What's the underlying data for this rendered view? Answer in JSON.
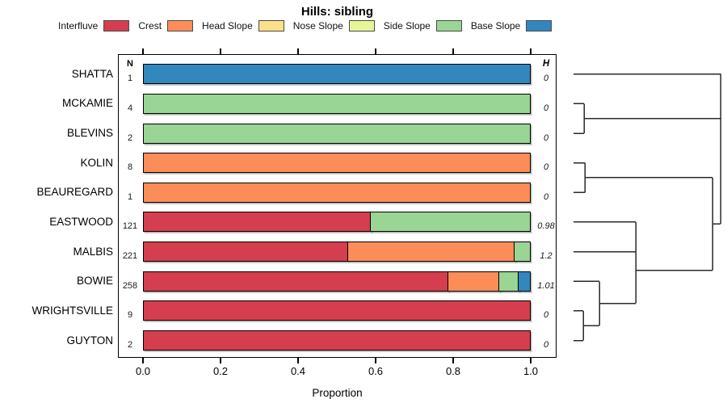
{
  "chart_data": {
    "type": "bar",
    "orientation": "horizontal-stacked",
    "title": "Hills: sibling",
    "xlabel": "Proportion",
    "xlim": [
      0.0,
      1.0
    ],
    "xticks": [
      "0.0",
      "0.2",
      "0.4",
      "0.6",
      "0.8",
      "1.0"
    ],
    "grid": false,
    "legend_position": "top",
    "legend": [
      "Interfluve",
      "Crest",
      "Head Slope",
      "Nose Slope",
      "Side Slope",
      "Base Slope"
    ],
    "colors": {
      "Interfluve": "#D53E4F",
      "Crest": "#FC8D59",
      "Head Slope": "#FEE08B",
      "Nose Slope": "#E6F598",
      "Side Slope": "#99D594",
      "Base Slope": "#3288BD"
    },
    "columns": {
      "n_header": "N",
      "h_header": "H"
    },
    "categories": [
      "SHATTA",
      "MCKAMIE",
      "BLEVINS",
      "KOLIN",
      "BEAUREGARD",
      "EASTWOOD",
      "MALBIS",
      "BOWIE",
      "WRIGHTSVILLE",
      "GUYTON"
    ],
    "n_values": [
      "1",
      "4",
      "2",
      "8",
      "1",
      "121",
      "221",
      "258",
      "9",
      "2"
    ],
    "h_values": [
      "0",
      "0",
      "0",
      "0",
      "0",
      "0.98",
      "1.2",
      "1.01",
      "0",
      "0"
    ],
    "series": [
      {
        "name": "Interfluve",
        "values": [
          0,
          0,
          0,
          0,
          0,
          0.59,
          0.53,
          0.79,
          1,
          1
        ]
      },
      {
        "name": "Crest",
        "values": [
          0,
          0,
          0,
          1,
          1,
          0,
          0.43,
          0.13,
          0,
          0
        ]
      },
      {
        "name": "Head Slope",
        "values": [
          0,
          0,
          0,
          0,
          0,
          0,
          0,
          0,
          0,
          0
        ]
      },
      {
        "name": "Nose Slope",
        "values": [
          0,
          0,
          0,
          0,
          0,
          0,
          0,
          0,
          0,
          0
        ]
      },
      {
        "name": "Side Slope",
        "values": [
          0,
          1,
          1,
          0,
          0,
          0.41,
          0.04,
          0.05,
          0,
          0
        ]
      },
      {
        "name": "Base Slope",
        "values": [
          1,
          0,
          0,
          0,
          0,
          0,
          0,
          0.03,
          0,
          0
        ]
      }
    ],
    "rows": [
      {
        "name": "SHATTA",
        "n": "1",
        "h": "0",
        "segments": [
          {
            "category": "Base Slope",
            "value": 1.0
          }
        ]
      },
      {
        "name": "MCKAMIE",
        "n": "4",
        "h": "0",
        "segments": [
          {
            "category": "Side Slope",
            "value": 1.0
          }
        ]
      },
      {
        "name": "BLEVINS",
        "n": "2",
        "h": "0",
        "segments": [
          {
            "category": "Side Slope",
            "value": 1.0
          }
        ]
      },
      {
        "name": "KOLIN",
        "n": "8",
        "h": "0",
        "segments": [
          {
            "category": "Crest",
            "value": 1.0
          }
        ]
      },
      {
        "name": "BEAUREGARD",
        "n": "1",
        "h": "0",
        "segments": [
          {
            "category": "Crest",
            "value": 1.0
          }
        ]
      },
      {
        "name": "EASTWOOD",
        "n": "121",
        "h": "0.98",
        "segments": [
          {
            "category": "Interfluve",
            "value": 0.59
          },
          {
            "category": "Side Slope",
            "value": 0.41
          }
        ]
      },
      {
        "name": "MALBIS",
        "n": "221",
        "h": "1.2",
        "segments": [
          {
            "category": "Interfluve",
            "value": 0.53
          },
          {
            "category": "Crest",
            "value": 0.43
          },
          {
            "category": "Side Slope",
            "value": 0.04
          }
        ]
      },
      {
        "name": "BOWIE",
        "n": "258",
        "h": "1.01",
        "segments": [
          {
            "category": "Interfluve",
            "value": 0.79
          },
          {
            "category": "Crest",
            "value": 0.13
          },
          {
            "category": "Side Slope",
            "value": 0.05
          },
          {
            "category": "Base Slope",
            "value": 0.03
          }
        ]
      },
      {
        "name": "WRIGHTSVILLE",
        "n": "9",
        "h": "0",
        "segments": [
          {
            "category": "Interfluve",
            "value": 1.0
          }
        ]
      },
      {
        "name": "GUYTON",
        "n": "2",
        "h": "0",
        "segments": [
          {
            "category": "Interfluve",
            "value": 1.0
          }
        ]
      }
    ],
    "dendrogram": {
      "tree": {
        "h": 182,
        "children": [
          {
            "h": 182,
            "children": [
              {
                "leaf": "SHATTA"
              },
              {
                "h": 13,
                "children": [
                  {
                    "leaf": "MCKAMIE"
                  },
                  {
                    "leaf": "BLEVINS"
                  }
                ]
              }
            ]
          },
          {
            "h": 172,
            "children": [
              {
                "h": 14,
                "children": [
                  {
                    "leaf": "KOLIN"
                  },
                  {
                    "leaf": "BEAUREGARD"
                  }
                ]
              },
              {
                "h": 77,
                "children": [
                  {
                    "h": 77,
                    "children": [
                      {
                        "leaf": "EASTWOOD"
                      },
                      {
                        "leaf": "MALBIS"
                      }
                    ]
                  },
                  {
                    "h": 32,
                    "children": [
                      {
                        "leaf": "BOWIE"
                      },
                      {
                        "h": 12,
                        "children": [
                          {
                            "leaf": "WRIGHTSVILLE"
                          },
                          {
                            "leaf": "GUYTON"
                          }
                        ]
                      }
                    ]
                  }
                ]
              }
            ]
          }
        ]
      }
    }
  }
}
